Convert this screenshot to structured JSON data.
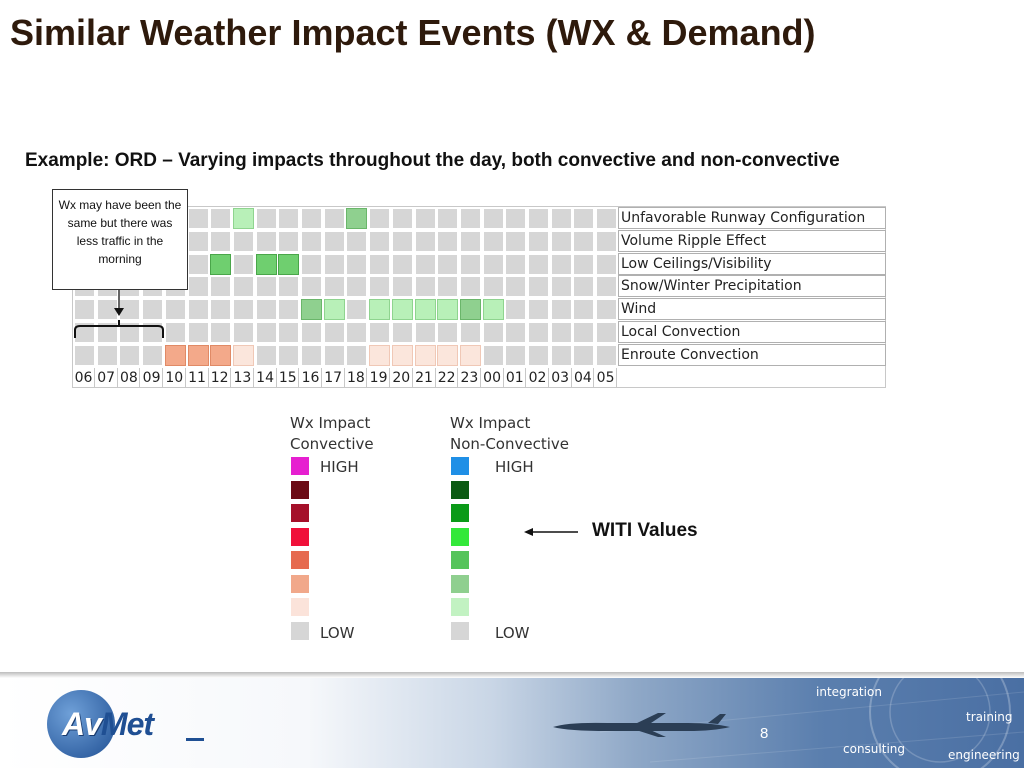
{
  "title": "Similar Weather Impact Events (WX & Demand)",
  "subtitle": "Example: ORD – Varying impacts throughout the day, both convective and non-convective",
  "callout": "Wx may have been the same but there was less traffic in the morning",
  "rows": [
    {
      "label": "Unfavorable Runway Configuration",
      "cells": {
        "7": "ltgreen",
        "12": "mdgreen"
      }
    },
    {
      "label": "Volume Ripple Effect",
      "cells": {}
    },
    {
      "label": "Low Ceilings/Visibility",
      "cells": {
        "6": "green",
        "8": "green",
        "9": "green"
      }
    },
    {
      "label": "Snow/Winter Precipitation",
      "cells": {}
    },
    {
      "label": "Wind",
      "cells": {
        "10": "mdgreen",
        "11": "ltgreen",
        "13": "ltgreen",
        "14": "ltgreen",
        "15": "ltgreen",
        "16": "ltgreen",
        "17": "mdgreen",
        "18": "ltgreen"
      }
    },
    {
      "label": "Local Convection",
      "cells": {}
    },
    {
      "label": "Enroute Convection",
      "cells": {
        "4": "orange",
        "5": "orange",
        "6": "orange",
        "7": "peach",
        "13": "peach",
        "14": "peach",
        "15": "peach",
        "16": "peach",
        "17": "peach"
      }
    }
  ],
  "hours": [
    "06",
    "07",
    "08",
    "09",
    "10",
    "11",
    "12",
    "13",
    "14",
    "15",
    "16",
    "17",
    "18",
    "19",
    "20",
    "21",
    "22",
    "23",
    "00",
    "01",
    "02",
    "03",
    "04",
    "05"
  ],
  "legend": {
    "convective": {
      "title_line1": "Wx Impact",
      "title_line2": "Convective",
      "high": "HIGH",
      "low": "LOW",
      "colors": [
        "#e61fd0",
        "#6b0a14",
        "#a5102a",
        "#f0103a",
        "#e66a50",
        "#f1a88a",
        "#fbe3da",
        "#d6d6d6"
      ]
    },
    "nonconvective": {
      "title_line1": "Wx Impact",
      "title_line2": "Non-Convective",
      "high": "HIGH",
      "low": "LOW",
      "colors": [
        "#1f8fe6",
        "#0b5a12",
        "#0a9a18",
        "#33e83a",
        "#55c45a",
        "#8fcf8f",
        "#c2f2c2",
        "#d6d6d6"
      ]
    }
  },
  "witi_label": "WITI Values",
  "footer": {
    "logo_first": "Av",
    "logo_rest": "Met",
    "page_number": "8",
    "tags": [
      "integration",
      "training",
      "consulting",
      "engineering"
    ]
  }
}
